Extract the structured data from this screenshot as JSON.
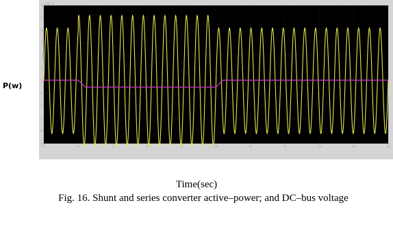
{
  "chart_data": {
    "type": "line",
    "title": "",
    "xlabel": "Time(sec)",
    "ylabel": "P(w)",
    "exponent_label": "x 10^4",
    "xlim": [
      5,
      15
    ],
    "ylim": [
      -5,
      6
    ],
    "x_ticks": [
      "5",
      "6",
      "7",
      "8",
      "9",
      "10",
      "11",
      "12",
      "13",
      "14",
      "15"
    ],
    "y_ticks": [
      "6",
      "5",
      "4",
      "3",
      "2",
      "1",
      "0",
      "-1",
      "-2",
      "-3",
      "-4",
      "-5"
    ],
    "grid": true,
    "background": "#000000",
    "series": [
      {
        "color": "#e6e64a",
        "kind": "sinusoid",
        "cycles_per_sec": 3.2,
        "segments": [
          {
            "x_start": 5.0,
            "x_end": 6.0,
            "amplitude": 4.2
          },
          {
            "x_start": 6.0,
            "x_end": 10.0,
            "amplitude": 5.2
          },
          {
            "x_start": 10.0,
            "x_end": 15.0,
            "amplitude": 4.2
          }
        ]
      },
      {
        "color": "#cc33cc",
        "kind": "step",
        "points": [
          [
            5.0,
            0.05
          ],
          [
            6.0,
            0.05
          ],
          [
            6.2,
            -0.5
          ],
          [
            10.0,
            -0.5
          ],
          [
            10.2,
            0.05
          ],
          [
            15.0,
            0.05
          ]
        ]
      }
    ]
  },
  "figure": {
    "caption": "Fig. 16. Shunt and series converter active–power; and DC–bus voltage"
  }
}
